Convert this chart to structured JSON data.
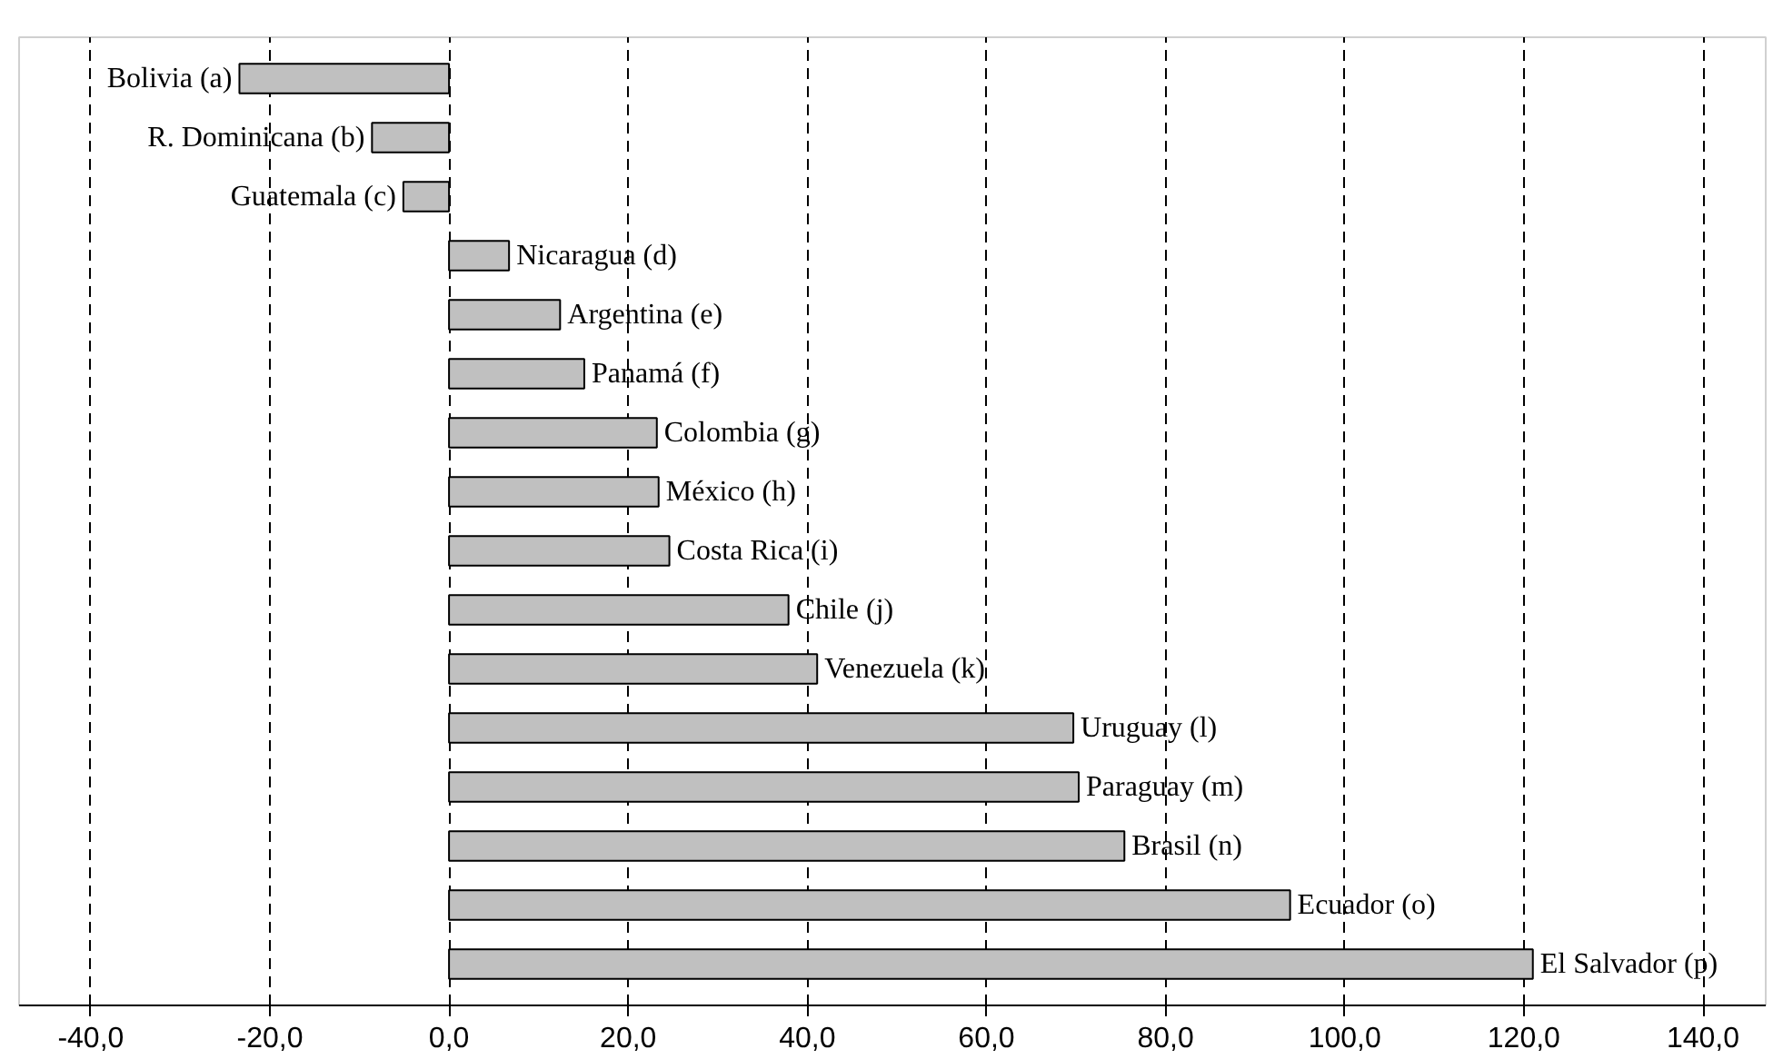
{
  "chart_data": {
    "type": "bar",
    "orientation": "horizontal",
    "categories": [
      "Bolivia (a)",
      "R. Dominicana (b)",
      "Guatemala (c)",
      "Nicaragua (d)",
      "Argentina (e)",
      "Panamá (f)",
      "Colombia (g)",
      "México (h)",
      "Costa Rica (i)",
      "Chile (j)",
      "Venezuela (k)",
      "Uruguay (l)",
      "Paraguay (m)",
      "Brasil (n)",
      "Ecuador (o)",
      "El Salvador (p)"
    ],
    "values": [
      -23.4,
      -8.6,
      -5.1,
      6.7,
      12.4,
      15.1,
      23.2,
      23.4,
      24.6,
      37.9,
      41.1,
      69.7,
      70.3,
      75.4,
      93.9,
      121.0
    ],
    "color": "#c0c0c0",
    "xlim": [
      -48,
      147
    ],
    "xticks": [
      {
        "value": -40,
        "label": "-40,0"
      },
      {
        "value": -20,
        "label": "-20,0"
      },
      {
        "value": 0,
        "label": "0,0"
      },
      {
        "value": 20,
        "label": "20,0"
      },
      {
        "value": 40,
        "label": "40,0"
      },
      {
        "value": 60,
        "label": "60,0"
      },
      {
        "value": 80,
        "label": "80,0"
      },
      {
        "value": 100,
        "label": "100,0"
      },
      {
        "value": 120,
        "label": "120,0"
      },
      {
        "value": 140,
        "label": "140,0"
      }
    ],
    "grid": "x",
    "tick_labels": "x"
  }
}
